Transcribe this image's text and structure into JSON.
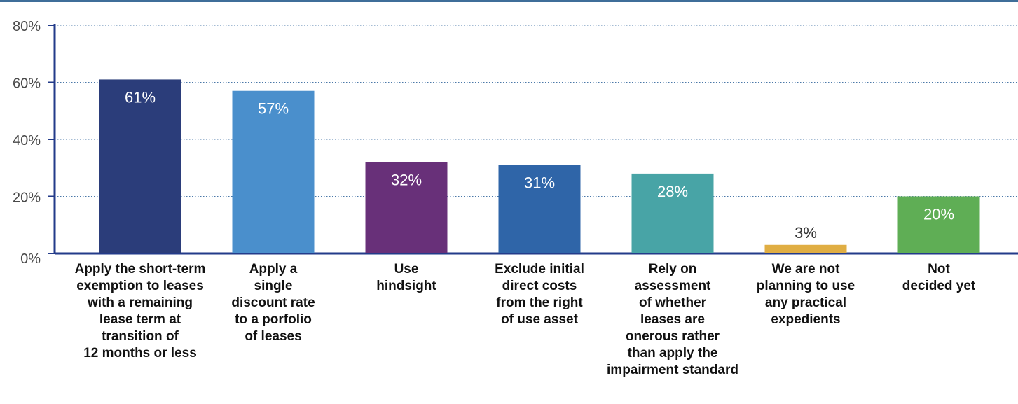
{
  "chart_data": {
    "type": "bar",
    "categories": [
      [
        "Apply the short-term",
        "exemption to leases",
        "with a remaining",
        "lease term at",
        "transition of",
        "12 months or less"
      ],
      [
        "Apply a",
        "single",
        "discount rate",
        "to a porfolio",
        "of leases"
      ],
      [
        "Use",
        "hindsight"
      ],
      [
        "Exclude initial",
        "direct costs",
        "from the right",
        "of use asset"
      ],
      [
        "Rely on",
        "assessment",
        "of whether",
        "leases are",
        "onerous rather",
        "than apply the",
        "impairment standard"
      ],
      [
        "We are not",
        "planning to use",
        "any practical",
        "expedients"
      ],
      [
        "Not",
        "decided yet"
      ]
    ],
    "values": [
      61,
      57,
      32,
      31,
      28,
      3,
      20
    ],
    "value_labels": [
      "61%",
      "57%",
      "32%",
      "31%",
      "28%",
      "3%",
      "20%"
    ],
    "colors": [
      "#2b3d7a",
      "#4a8fcc",
      "#683079",
      "#2f65a8",
      "#48a4a6",
      "#e0ae43",
      "#5fae55"
    ],
    "ylim": [
      0,
      80
    ],
    "yticks": [
      0,
      20,
      40,
      60,
      80
    ],
    "ytick_labels": [
      "0%",
      "20%",
      "40%",
      "60%",
      "80%"
    ],
    "grid": true,
    "axis_color": "#233b8a",
    "title": "",
    "xlabel": "",
    "ylabel": ""
  }
}
